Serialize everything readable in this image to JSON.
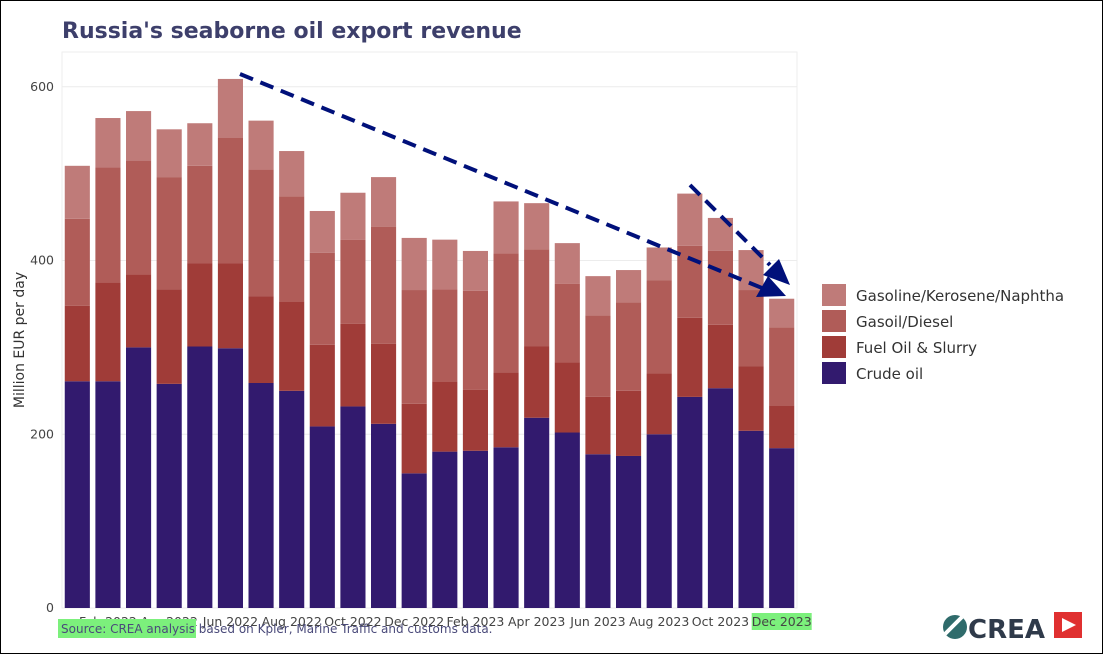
{
  "chart_data": {
    "type": "bar",
    "stacked": true,
    "title": "Russia's seaborne oil export revenue",
    "xlabel": "",
    "ylabel": "Million EUR per day",
    "ylim": [
      0,
      640
    ],
    "yticks": [
      0,
      200,
      400,
      600
    ],
    "grid": true,
    "legend_position": "right",
    "categories": [
      "Jan 2022",
      "Feb 2022",
      "Mar 2022",
      "Apr 2022",
      "May 2022",
      "Jun 2022",
      "Jul 2022",
      "Aug 2022",
      "Sep 2022",
      "Oct 2022",
      "Nov 2022",
      "Dec 2022",
      "Jan 2023",
      "Feb 2023",
      "Mar 2023",
      "Apr 2023",
      "May 2023",
      "Jun 2023",
      "Jul 2023",
      "Aug 2023",
      "Sep 2023",
      "Oct 2023",
      "Nov 2023",
      "Dec 2023"
    ],
    "xtick_labels": [
      "Feb 2022",
      "Apr 2022",
      "Jun 2022",
      "Aug 2022",
      "Oct 2022",
      "Dec 2022",
      "Feb 2023",
      "Apr 2023",
      "Jun 2023",
      "Aug 2023",
      "Oct 2023",
      "Dec 2023"
    ],
    "series": [
      {
        "name": "Crude oil",
        "color": "#321a6e",
        "values": [
          261,
          261,
          300,
          258,
          301,
          299,
          259,
          250,
          209,
          232,
          212,
          155,
          180,
          181,
          185,
          219,
          202,
          177,
          175,
          200,
          243,
          253,
          204,
          184
        ]
      },
      {
        "name": "Fuel Oil & Slurry",
        "color": "#a03c38",
        "values": [
          87,
          114,
          84,
          109,
          96,
          98,
          100,
          103,
          94,
          95,
          92,
          80,
          81,
          70,
          86,
          82,
          81,
          66,
          75,
          70,
          91,
          73,
          74,
          49
        ]
      },
      {
        "name": "Gasoil/Diesel",
        "color": "#b05c58",
        "values": [
          100,
          132,
          131,
          129,
          112,
          144,
          146,
          121,
          106,
          97,
          135,
          131,
          106,
          114,
          137,
          112,
          90,
          94,
          102,
          107,
          83,
          85,
          88,
          90
        ]
      },
      {
        "name": "Gasoline/Kerosene/Naphtha",
        "color": "#bf7b79",
        "values": [
          61,
          57,
          57,
          55,
          49,
          68,
          56,
          52,
          48,
          54,
          57,
          60,
          57,
          46,
          60,
          53,
          47,
          45,
          37,
          38,
          60,
          38,
          46,
          33
        ]
      }
    ],
    "legend_order": [
      "Gasoline/Kerosene/Naphtha",
      "Gasoil/Diesel",
      "Fuel Oil & Slurry",
      "Crude oil"
    ],
    "annotations": {
      "arrow_color": "#00107a",
      "highlight_color": "#7cf07c"
    }
  },
  "footer": {
    "source_highlight": "Source: CREA analysis",
    "source_rest": " based on Kpler, Marine Traffic and customs data.",
    "logo_text": "CREA"
  }
}
